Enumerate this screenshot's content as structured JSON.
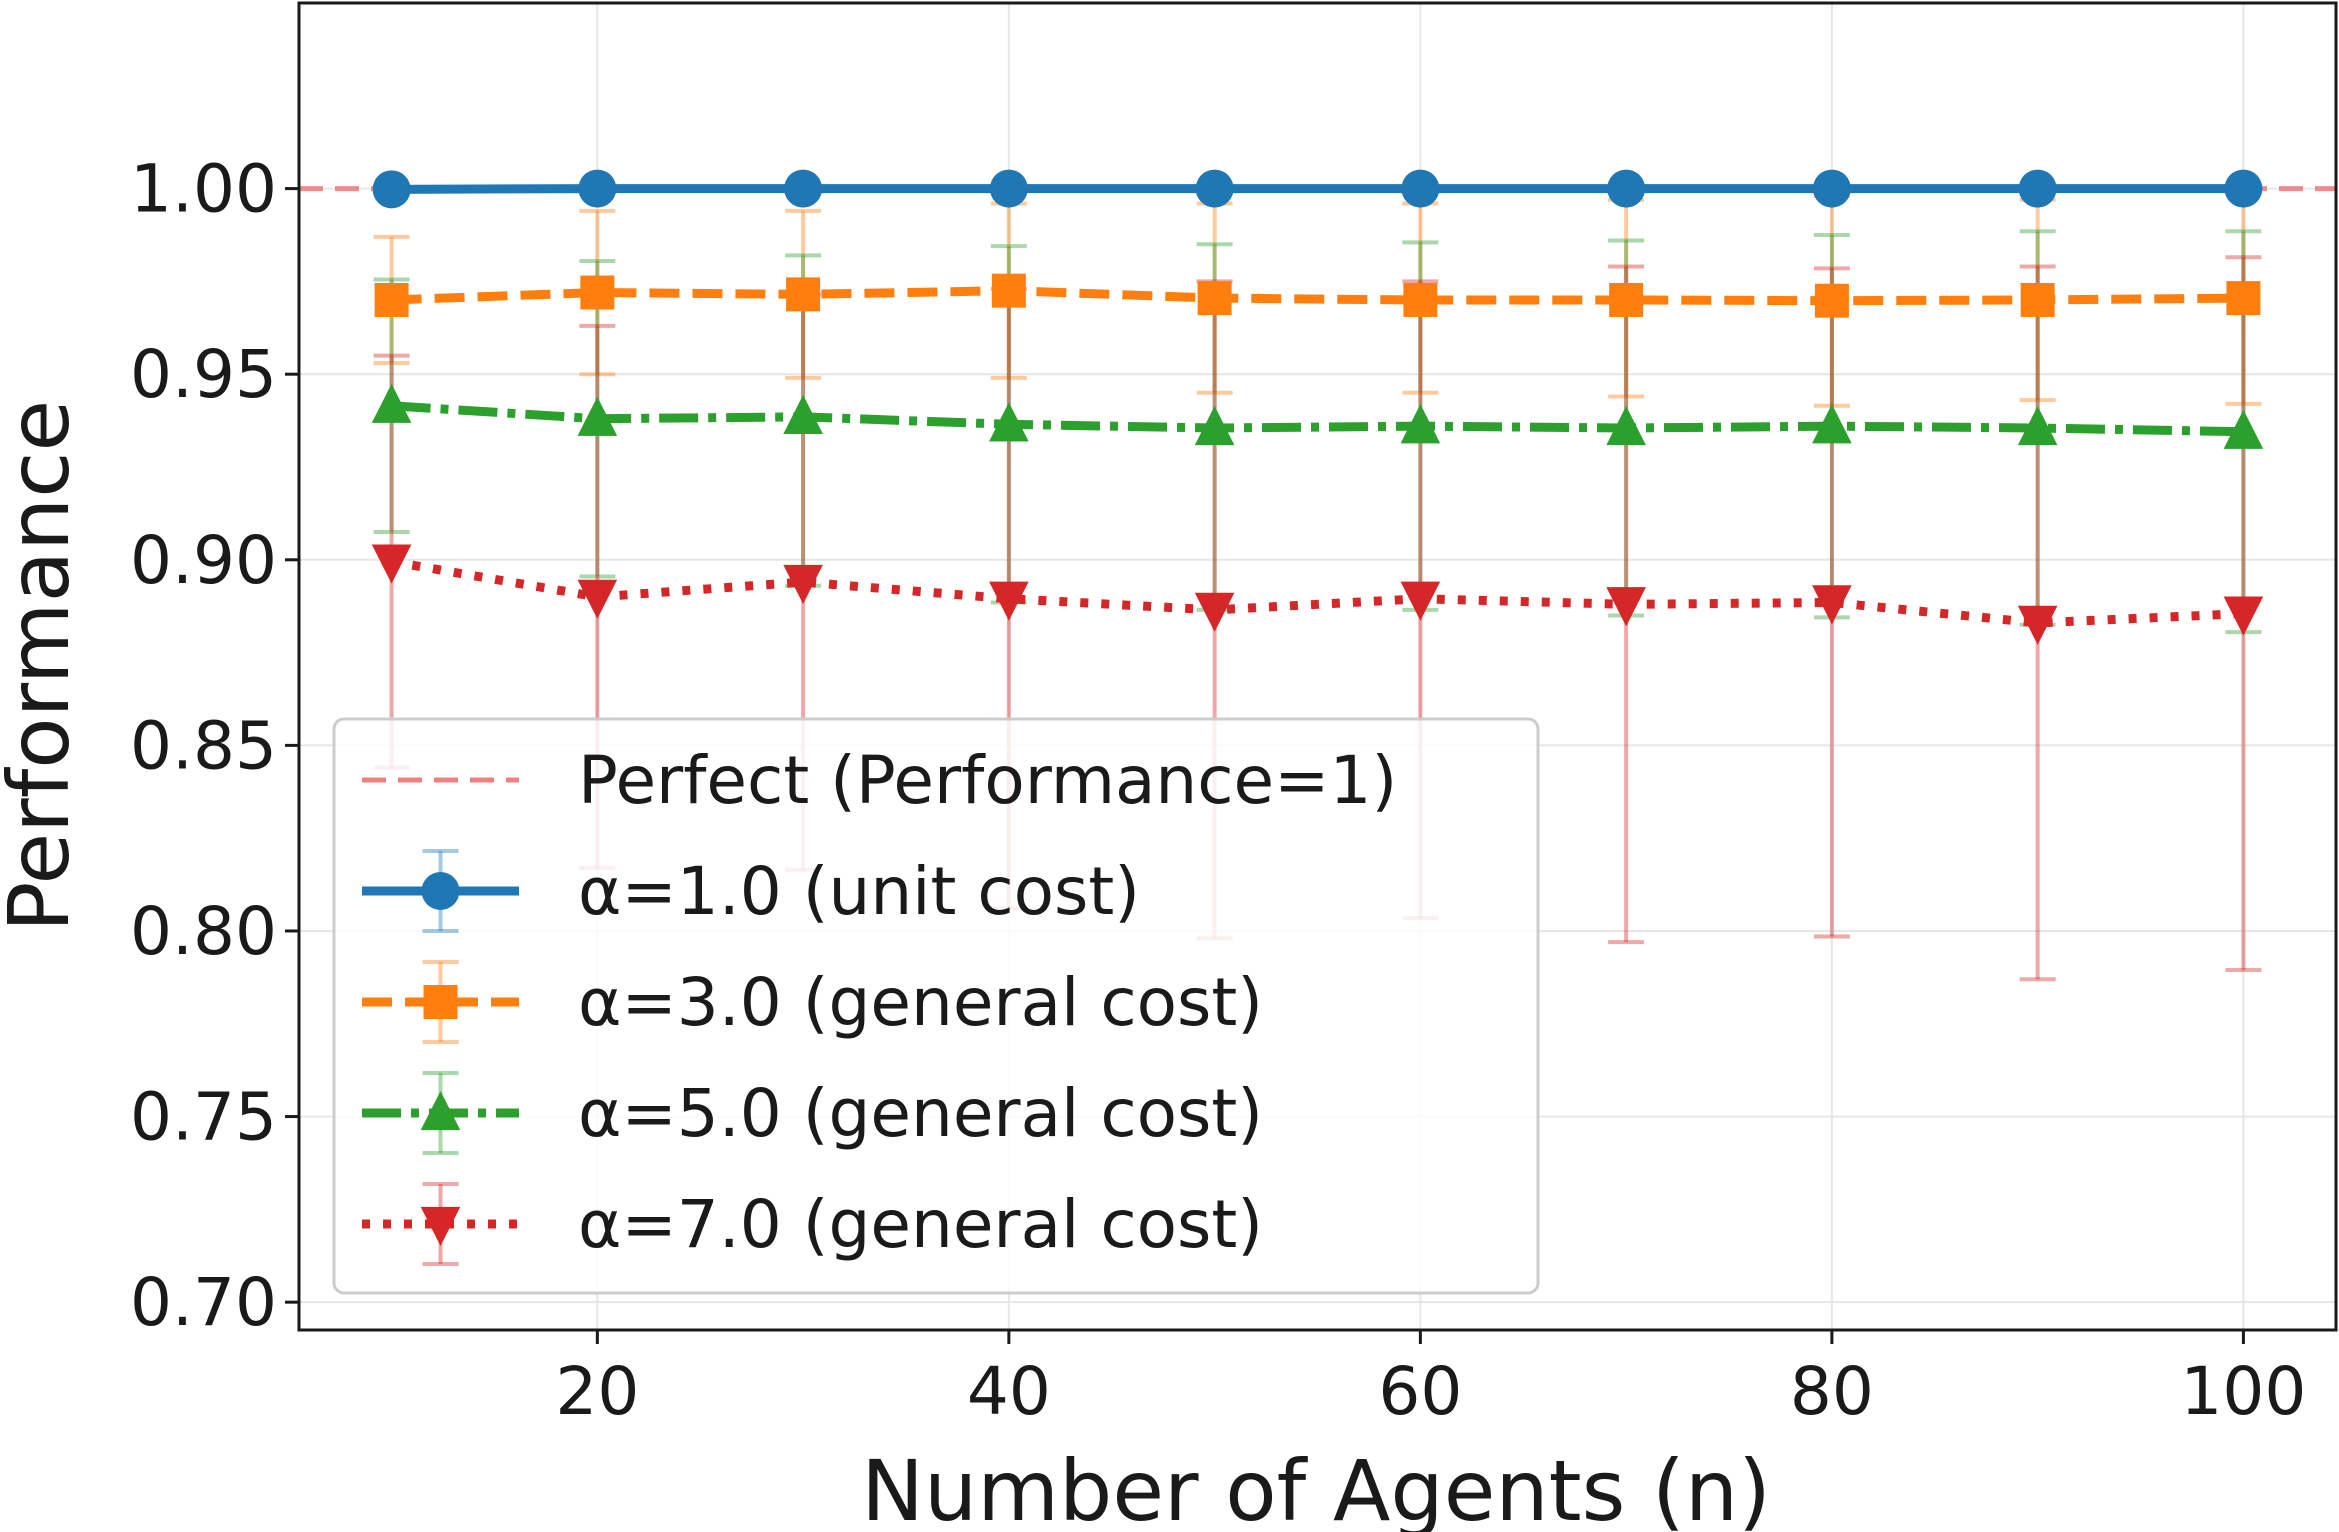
{
  "chart_data": {
    "type": "line",
    "title": "",
    "xlabel": "Number of Agents (n)",
    "ylabel": "Performance",
    "xlim": [
      5.5,
      104.5
    ],
    "ylim": [
      0.6925,
      1.05
    ],
    "grid": true,
    "legend_position": "lower-left",
    "x": [
      10,
      20,
      30,
      40,
      50,
      60,
      70,
      80,
      90,
      100
    ],
    "xticks": [
      20,
      40,
      60,
      80,
      100
    ],
    "xtick_labels": [
      "20",
      "40",
      "60",
      "80",
      "100"
    ],
    "yticks": [
      0.7,
      0.75,
      0.8,
      0.85,
      0.9,
      0.95,
      1.0
    ],
    "ytick_labels": [
      "0.70",
      "0.75",
      "0.80",
      "0.85",
      "0.90",
      "0.95",
      "1.00"
    ],
    "reference_line": {
      "name": "Perfect (Performance=1)",
      "y": 1.0,
      "color": "#f08080"
    },
    "series": [
      {
        "name": "α=1.0 (unit cost)",
        "color": "#1f77b4",
        "marker": "circle",
        "linestyle": "solid",
        "values": [
          0.9998,
          1.0,
          1.0,
          1.0,
          1.0,
          1.0,
          1.0,
          1.0,
          1.0,
          1.0
        ],
        "err_low": [
          0.9998,
          1.0,
          1.0,
          1.0,
          1.0,
          1.0,
          1.0,
          1.0,
          1.0,
          1.0
        ],
        "err_high": [
          0.9998,
          1.0,
          1.0,
          1.0,
          1.0,
          1.0,
          1.0,
          1.0,
          1.0,
          1.0
        ]
      },
      {
        "name": "α=3.0 (general cost)",
        "color": "#ff7f0e",
        "marker": "square",
        "linestyle": "dashed",
        "values": [
          0.97,
          0.972,
          0.9715,
          0.9725,
          0.9705,
          0.97,
          0.97,
          0.9698,
          0.97,
          0.9705
        ],
        "err_low": [
          0.953,
          0.95,
          0.949,
          0.949,
          0.945,
          0.945,
          0.944,
          0.9415,
          0.943,
          0.942
        ],
        "err_high": [
          0.987,
          0.994,
          0.994,
          0.996,
          0.996,
          0.996,
          0.997,
          0.998,
          0.997,
          0.999
        ]
      },
      {
        "name": "α=5.0 (general cost)",
        "color": "#2ca02c",
        "marker": "triangle-up",
        "linestyle": "dashdot",
        "values": [
          0.9415,
          0.938,
          0.9385,
          0.9365,
          0.9355,
          0.936,
          0.9355,
          0.936,
          0.9355,
          0.9345
        ],
        "err_low": [
          0.9075,
          0.8955,
          0.893,
          0.8885,
          0.8865,
          0.8865,
          0.885,
          0.8845,
          0.8825,
          0.8805
        ],
        "err_high": [
          0.9755,
          0.9805,
          0.982,
          0.9845,
          0.985,
          0.9855,
          0.986,
          0.9875,
          0.9885,
          0.9885
        ]
      },
      {
        "name": "α=7.0 (general cost)",
        "color": "#d62728",
        "marker": "triangle-down",
        "linestyle": "dotted",
        "values": [
          0.8995,
          0.89,
          0.894,
          0.8895,
          0.8865,
          0.8895,
          0.888,
          0.8885,
          0.883,
          0.8855
        ],
        "err_low": [
          0.844,
          0.817,
          0.8165,
          0.806,
          0.798,
          0.8035,
          0.797,
          0.7985,
          0.787,
          0.7895
        ],
        "err_high": [
          0.955,
          0.963,
          0.9715,
          0.973,
          0.975,
          0.975,
          0.979,
          0.9785,
          0.979,
          0.9815
        ]
      }
    ]
  }
}
